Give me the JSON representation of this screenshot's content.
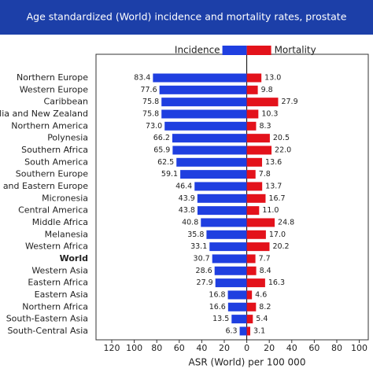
{
  "chart_data": {
    "type": "butterfly",
    "title": "Age standardized (World) incidence and mortality rates, prostate",
    "x_label": "ASR (World) per 100 000",
    "categories": [
      "Northern Europe",
      "Western Europe",
      "Caribbean",
      "Australia and New Zealand",
      "Northern America",
      "Polynesia",
      "Southern Africa",
      "South America",
      "Southern Europe",
      "Central and Eastern Europe",
      "Micronesia",
      "Central America",
      "Middle Africa",
      "Melanesia",
      "Western Africa",
      "World",
      "Western Asia",
      "Eastern Africa",
      "Eastern Asia",
      "Northern Africa",
      "South-Eastern Asia",
      "South-Central Asia"
    ],
    "series": [
      {
        "name": "Incidence",
        "color": "#1f3fe0",
        "values": [
          83.4,
          77.6,
          75.8,
          75.8,
          73.0,
          66.2,
          65.9,
          62.5,
          59.1,
          46.4,
          43.9,
          43.8,
          40.8,
          35.8,
          33.1,
          30.7,
          28.6,
          27.9,
          16.8,
          16.6,
          13.5,
          6.3
        ],
        "value_labels": [
          "83.4",
          "77.6",
          "75.8",
          "75.8",
          "73.0",
          "66.2",
          "65.9",
          "62.5",
          "59.1",
          "46.4",
          "43.9",
          "43.8",
          "40.8",
          "35.8",
          "33.1",
          "30.7",
          "28.6",
          "27.9",
          "16.8",
          "16.6",
          "13.5",
          "6.3"
        ]
      },
      {
        "name": "Mortality",
        "color": "#e3121b",
        "values": [
          13.0,
          9.8,
          27.9,
          10.3,
          8.3,
          20.5,
          22.0,
          13.6,
          7.8,
          13.7,
          16.7,
          11.0,
          24.8,
          17.0,
          20.2,
          7.7,
          8.4,
          16.3,
          4.6,
          8.2,
          5.4,
          3.1
        ],
        "value_labels": [
          "13.0",
          "9.8",
          "27.9",
          "10.3",
          "8.3",
          "20.5",
          "22.0",
          "13.6",
          "7.8",
          "13.7",
          "16.7",
          "11.0",
          "24.8",
          "17.0",
          "20.2",
          "7.7",
          "8.4",
          "16.3",
          "4.6",
          "8.2",
          "5.4",
          "3.1"
        ]
      }
    ],
    "xlim": [
      -134,
      108
    ],
    "xticks": [
      {
        "value": -120,
        "label": "120"
      },
      {
        "value": -100,
        "label": "100"
      },
      {
        "value": -80,
        "label": "80"
      },
      {
        "value": -60,
        "label": "60"
      },
      {
        "value": -40,
        "label": "40"
      },
      {
        "value": -20,
        "label": "20"
      },
      0,
      20,
      40,
      60,
      80,
      100
    ]
  }
}
